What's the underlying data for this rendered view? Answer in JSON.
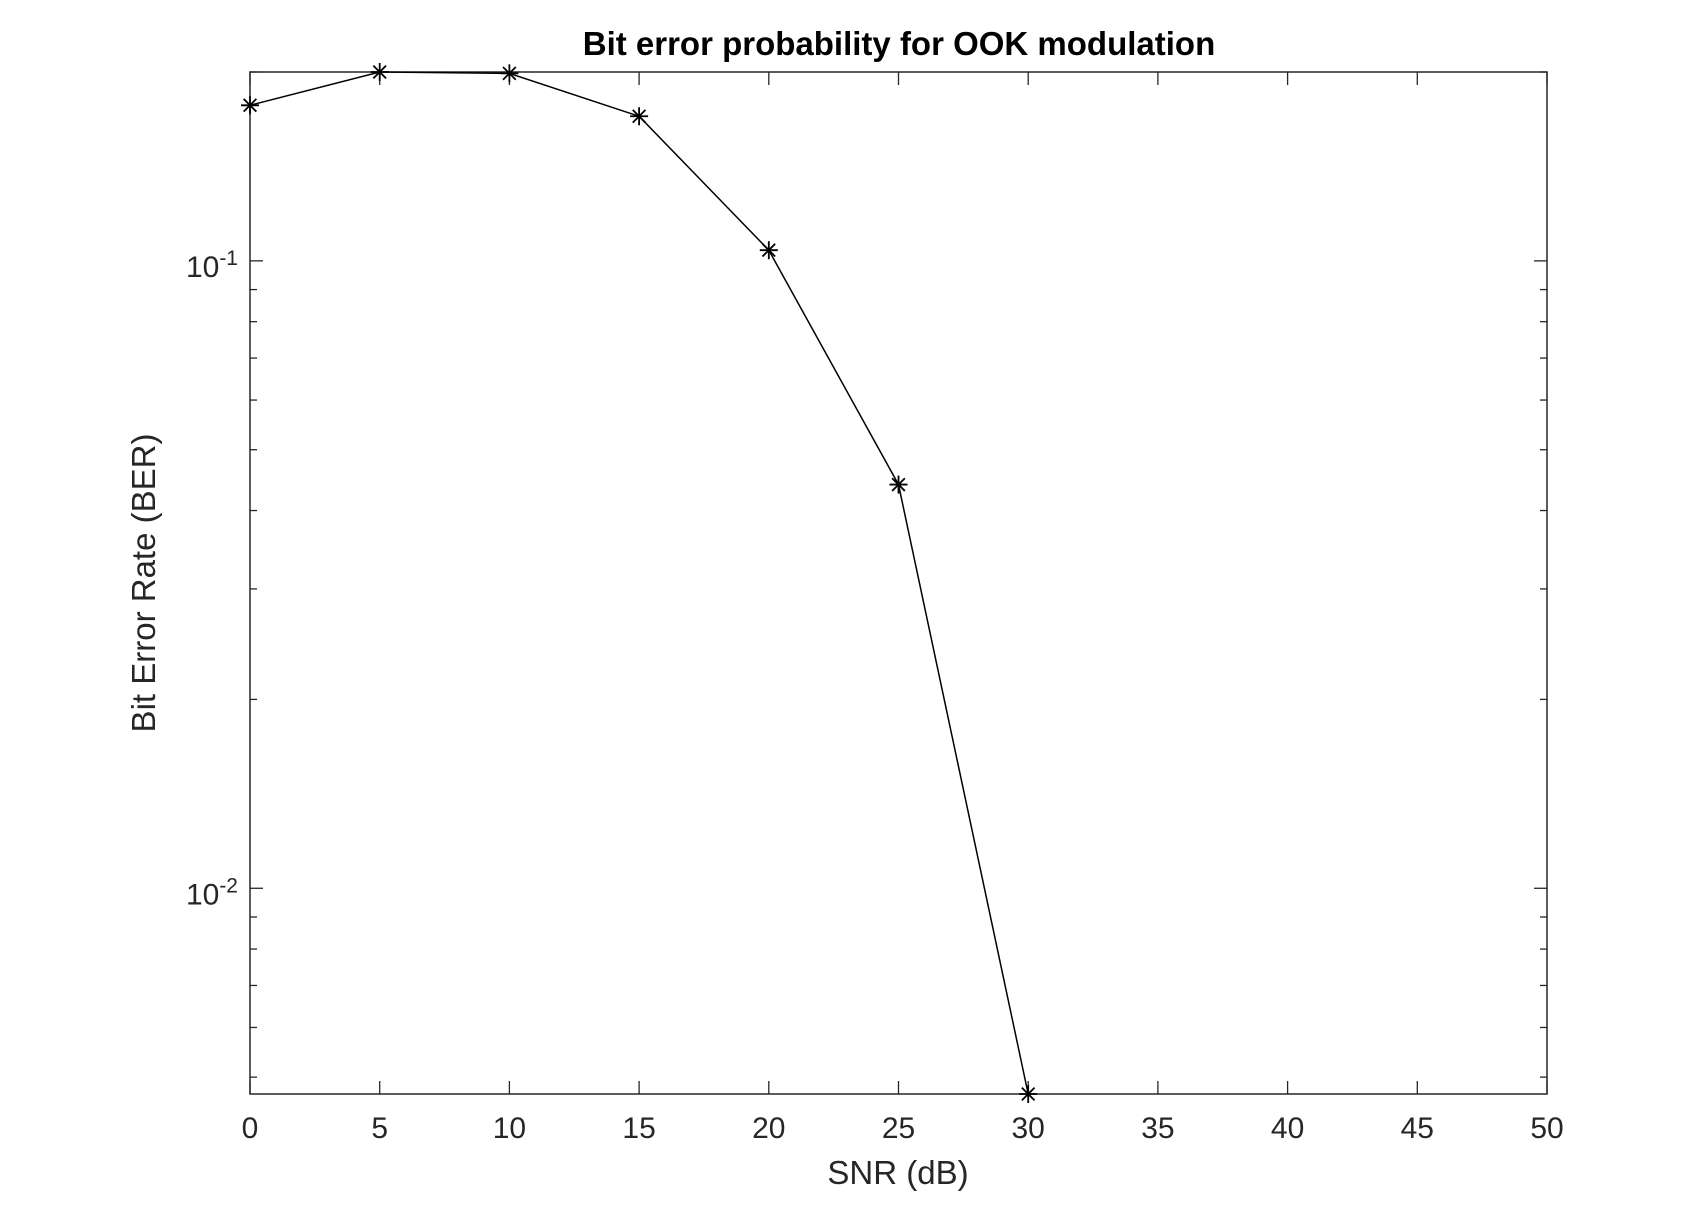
{
  "chart_data": {
    "type": "line",
    "title": "Bit error probability for OOK modulation",
    "xlabel": "SNR (dB)",
    "ylabel": "Bit Error Rate (BER)",
    "xlim": [
      0,
      50
    ],
    "ylim": [
      0.0047,
      0.2
    ],
    "x_scale": "linear",
    "y_scale": "log",
    "grid": false,
    "x_ticks": [
      0,
      5,
      10,
      15,
      20,
      25,
      30,
      35,
      40,
      45,
      50
    ],
    "x_tick_labels": [
      "0",
      "5",
      "10",
      "15",
      "20",
      "25",
      "30",
      "35",
      "40",
      "45",
      "50"
    ],
    "y_ticks": [
      0.1,
      0.01
    ],
    "y_tick_labels": [
      {
        "base": "10",
        "exp": "-1"
      },
      {
        "base": "10",
        "exp": "-2"
      }
    ],
    "series": [
      {
        "color": "#000000",
        "marker": "asterisk",
        "x": [
          0,
          5,
          10,
          15,
          20,
          25,
          30
        ],
        "y": [
          0.177,
          0.2,
          0.199,
          0.17,
          0.104,
          0.044,
          0.0047
        ]
      }
    ]
  }
}
